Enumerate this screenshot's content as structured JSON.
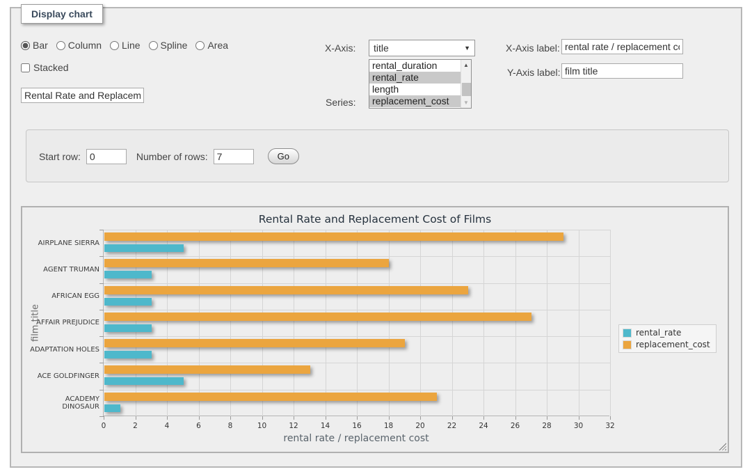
{
  "fieldset": {
    "legend": "Display chart"
  },
  "chart_types": {
    "options": [
      "Bar",
      "Column",
      "Line",
      "Spline",
      "Area"
    ],
    "selected": "Bar"
  },
  "stacked": {
    "label": "Stacked",
    "checked": false
  },
  "title_input": {
    "value": "Rental Rate and Replacement Cost of Films"
  },
  "x_axis_select": {
    "label": "X-Axis:",
    "selected": "title"
  },
  "series_listbox": {
    "label": "Series:",
    "options": [
      {
        "label": "rental_duration",
        "selected": false
      },
      {
        "label": "rental_rate",
        "selected": true
      },
      {
        "label": "length",
        "selected": false
      },
      {
        "label": "replacement_cost",
        "selected": true
      }
    ]
  },
  "x_axis_label_field": {
    "label": "X-Axis label:",
    "value": "rental rate / replacement cost"
  },
  "y_axis_label_field": {
    "label": "Y-Axis label:",
    "value": "film title"
  },
  "row_controls": {
    "start_row_label": "Start row:",
    "start_row_value": "0",
    "num_rows_label": "Number of rows:",
    "num_rows_value": "7",
    "go_label": "Go"
  },
  "colors": {
    "rental_rate": "#4EB8CB",
    "replacement_cost": "#EBA53F",
    "grid": "#d5d5d5",
    "selected_option_bg": "#c9c9c9"
  },
  "chart_data": {
    "type": "bar",
    "orientation": "horizontal",
    "title": "Rental Rate and Replacement Cost of Films",
    "xlabel": "rental rate / replacement cost",
    "ylabel": "film title",
    "categories": [
      "AIRPLANE SIERRA",
      "AGENT TRUMAN",
      "AFRICAN EGG",
      "AFFAIR PREJUDICE",
      "ADAPTATION HOLES",
      "ACE GOLDFINGER",
      "ACADEMY DINOSAUR"
    ],
    "series": [
      {
        "name": "rental_rate",
        "color": "#4EB8CB",
        "values": [
          4.99,
          2.99,
          2.99,
          2.99,
          2.99,
          4.99,
          0.99
        ]
      },
      {
        "name": "replacement_cost",
        "color": "#EBA53F",
        "values": [
          28.99,
          17.99,
          22.99,
          26.99,
          18.99,
          12.99,
          20.99
        ]
      }
    ],
    "xlim": [
      0,
      32
    ],
    "xticks": [
      0,
      2,
      4,
      6,
      8,
      10,
      12,
      14,
      16,
      18,
      20,
      22,
      24,
      26,
      28,
      30,
      32
    ],
    "grid": true,
    "legend_position": "right"
  }
}
